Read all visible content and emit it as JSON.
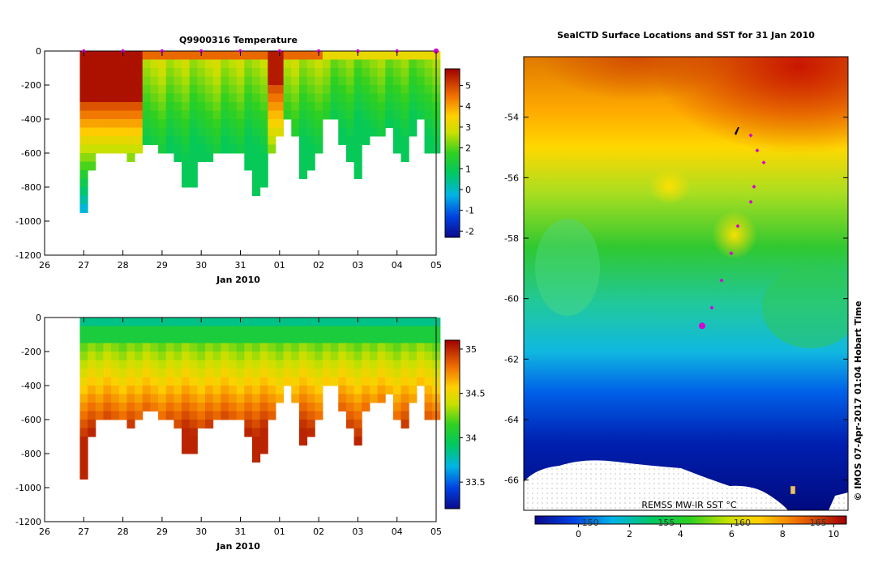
{
  "chart_data": [
    {
      "type": "heatmap",
      "title": "Q9900316  Temperature",
      "xlabel": "Jan 2010",
      "ylabel": "",
      "x_ticks": [
        "26",
        "27",
        "28",
        "29",
        "30",
        "31",
        "01",
        "02",
        "03",
        "04",
        "05"
      ],
      "y_ticks": [
        "0",
        "-200",
        "-400",
        "-600",
        "-800",
        "-1000",
        "-1200"
      ],
      "ylim": [
        -1200,
        0
      ],
      "colorbar_ticks": [
        "5",
        "4",
        "3",
        "2",
        "1",
        "0",
        "-1",
        "-2"
      ],
      "colorbar_range": [
        -2.3,
        5.8
      ],
      "profile_day_offsets": [
        1.0,
        1.2,
        1.4,
        1.6,
        1.8,
        2.0,
        2.2,
        2.4,
        2.6,
        2.8,
        3.0,
        3.2,
        3.4,
        3.6,
        3.8,
        4.0,
        4.2,
        4.4,
        4.6,
        4.8,
        5.0,
        5.2,
        5.4,
        5.6,
        5.8,
        6.0,
        6.2,
        6.4,
        6.6,
        6.8,
        7.0,
        7.2,
        7.4,
        7.6,
        7.8,
        8.0,
        8.2,
        8.4,
        8.6,
        8.8,
        9.0,
        9.2,
        9.4,
        9.6,
        9.8,
        10.0
      ],
      "profile_max_depth": [
        950,
        660,
        580,
        570,
        600,
        560,
        620,
        600,
        520,
        510,
        600,
        580,
        620,
        760,
        760,
        630,
        630,
        560,
        590,
        560,
        570,
        700,
        810,
        760,
        600,
        500,
        400,
        480,
        740,
        690,
        580,
        400,
        380,
        520,
        640,
        720,
        550,
        480,
        460,
        450,
        560,
        640,
        500,
        380,
        580,
        560
      ],
      "marker_day_offsets": [
        1,
        2,
        3,
        4,
        5,
        6,
        7,
        8,
        9,
        10
      ],
      "colors": {
        "marker": "#d400d4"
      }
    },
    {
      "type": "heatmap",
      "title": "",
      "xlabel": "Jan 2010",
      "ylabel": "",
      "x_ticks": [
        "26",
        "27",
        "28",
        "29",
        "30",
        "31",
        "01",
        "02",
        "03",
        "04",
        "05"
      ],
      "y_ticks": [
        "0",
        "-200",
        "-400",
        "-600",
        "-800",
        "-1000",
        "-1200"
      ],
      "ylim": [
        -1200,
        0
      ],
      "colorbar_ticks": [
        "35",
        "34.5",
        "34",
        "33.5"
      ],
      "colorbar_range": [
        33.2,
        35.1
      ]
    },
    {
      "type": "heatmap",
      "title": "SealCTD Surface Locations and SST for 31 Jan 2010",
      "y_ticks": [
        "-54",
        "-56",
        "-58",
        "-60",
        "-62",
        "-64",
        "-66"
      ],
      "latitude_range": [
        -67,
        -52
      ],
      "colorbar_ticks": [
        "0",
        "2",
        "4",
        "6",
        "8",
        "10"
      ],
      "colorbar_range": [
        -1.7,
        10.5
      ],
      "colorbar_secondary_ticks": [
        "150",
        "155",
        "160",
        "165"
      ],
      "product_label": "REMSS MW-IR SST °C",
      "track_points": [
        {
          "lon_frac": 0.7,
          "lat": -54.6
        },
        {
          "lon_frac": 0.72,
          "lat": -55.1
        },
        {
          "lon_frac": 0.74,
          "lat": -55.5
        },
        {
          "lon_frac": 0.71,
          "lat": -56.3
        },
        {
          "lon_frac": 0.7,
          "lat": -56.8
        },
        {
          "lon_frac": 0.66,
          "lat": -57.6
        },
        {
          "lon_frac": 0.64,
          "lat": -58.5
        },
        {
          "lon_frac": 0.61,
          "lat": -59.4
        },
        {
          "lon_frac": 0.58,
          "lat": -60.3
        }
      ],
      "current_point": {
        "lon_frac": 0.55,
        "lat": -60.9
      }
    }
  ],
  "credit": "© IMOS 07-Apr-2017 01:04 Hobart Time"
}
